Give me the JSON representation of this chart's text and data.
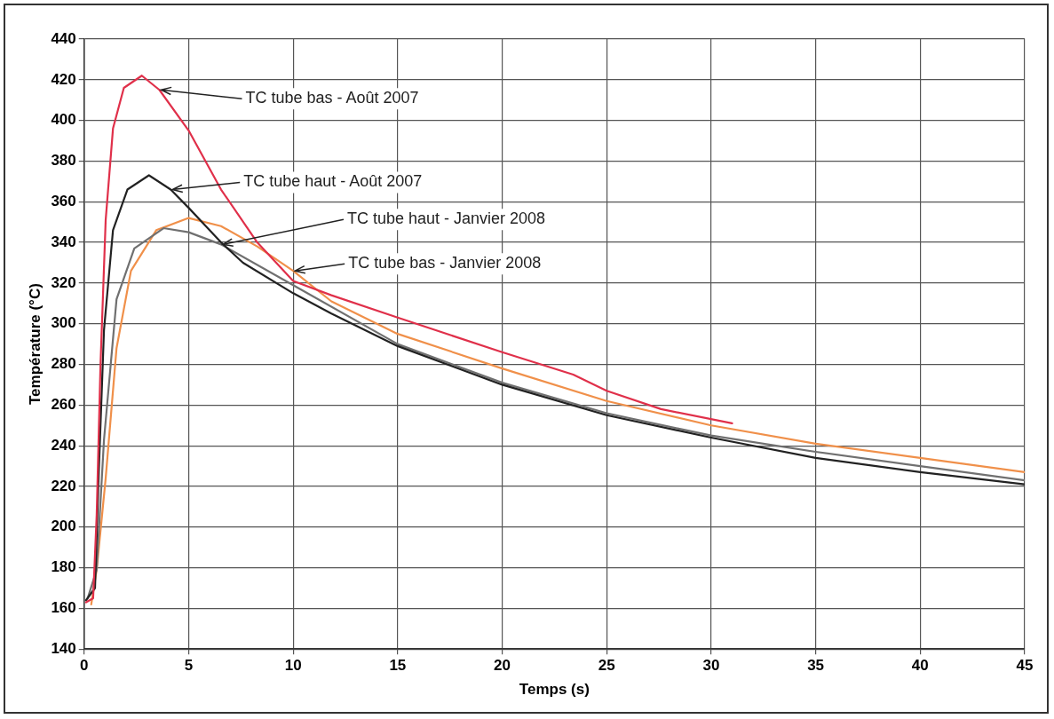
{
  "chart_data": {
    "type": "line",
    "xlabel": "Temps (s)",
    "ylabel": "Température (°C)",
    "xlim": [
      0,
      45
    ],
    "ylim": [
      140,
      440
    ],
    "xticks": [
      0,
      5,
      10,
      15,
      20,
      25,
      30,
      35,
      40,
      45
    ],
    "yticks": [
      140,
      160,
      180,
      200,
      220,
      240,
      260,
      280,
      300,
      320,
      340,
      360,
      380,
      400,
      420,
      440
    ],
    "grid": true,
    "legend": false,
    "marker": "none",
    "line_style": "solid",
    "series": [
      {
        "color": "#e0304a",
        "x": [
          0.09,
          0.43,
          0.6,
          0.78,
          1.03,
          1.38,
          1.9,
          2.76,
          3.6,
          5,
          6.55,
          8.28,
          10,
          11.83,
          15,
          20,
          23.4,
          25,
          27.6,
          31
        ],
        "values": [
          163,
          165,
          206,
          279,
          351,
          396,
          416,
          422,
          415,
          395,
          366,
          340,
          321,
          314,
          303,
          286,
          275,
          267,
          258,
          251
        ]
      },
      {
        "color": "#222222",
        "x": [
          0.09,
          0.52,
          0.69,
          0.95,
          1.38,
          2.07,
          3.1,
          4.14,
          5,
          6.55,
          7.6,
          10,
          11.83,
          15,
          20,
          25,
          30,
          35,
          40,
          45
        ],
        "values": [
          164,
          170,
          224,
          297,
          346,
          366,
          373,
          366,
          357,
          340,
          330,
          315,
          305,
          289,
          270,
          255,
          244,
          234,
          227,
          221
        ]
      },
      {
        "color": "#707070",
        "x": [
          0.17,
          0.6,
          0.95,
          1.55,
          2.4,
          3.8,
          5,
          6.55,
          10,
          15,
          20,
          25,
          30,
          35,
          40,
          45
        ],
        "values": [
          165,
          179,
          243,
          312,
          337,
          347,
          345,
          339,
          319,
          290,
          271,
          256,
          245,
          237,
          230,
          223
        ]
      },
      {
        "color": "#f0904a",
        "x": [
          0.34,
          0.6,
          1.03,
          1.55,
          2.24,
          3.45,
          5,
          6.55,
          8.28,
          10,
          11.83,
          15,
          20,
          25,
          30,
          35,
          40,
          45
        ],
        "values": [
          162,
          179,
          224,
          288,
          326,
          346,
          352,
          348,
          338,
          326,
          311,
          295,
          278,
          262,
          250,
          241,
          234,
          227
        ]
      }
    ],
    "annotations": [
      {
        "text": "TC tube bas - Août 2007",
        "x": 3.6,
        "y": 415
      },
      {
        "text": "TC tube haut - Août 2007",
        "x": 4.14,
        "y": 366
      },
      {
        "text": "TC tube haut - Janvier 2008",
        "x": 6.55,
        "y": 339
      },
      {
        "text": "TC tube bas - Janvier 2008",
        "x": 10,
        "y": 326
      }
    ]
  }
}
